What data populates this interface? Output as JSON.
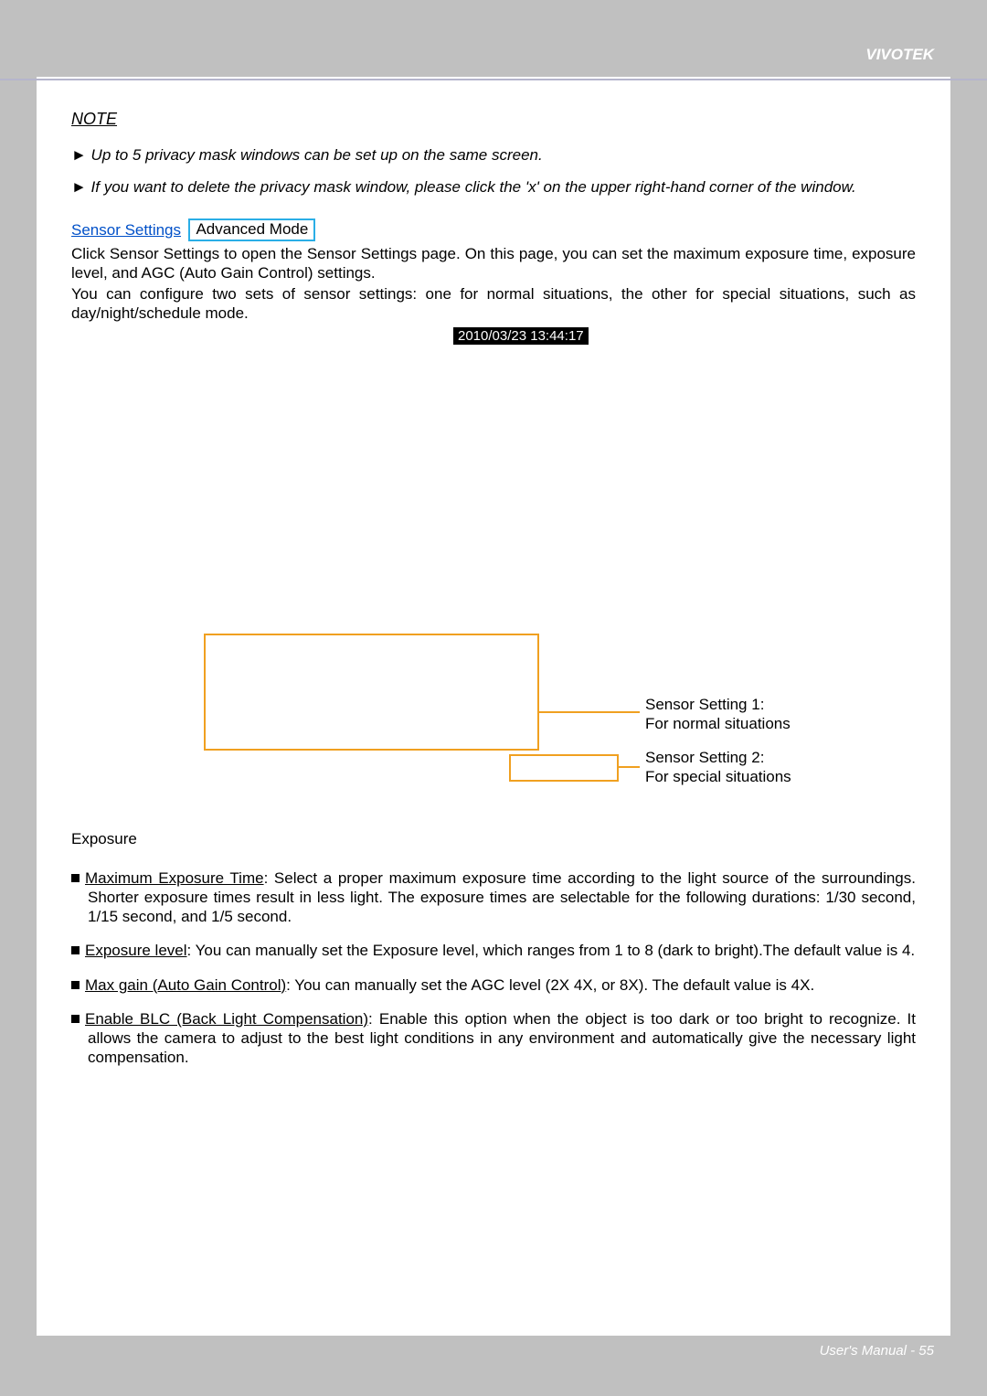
{
  "brand": "VIVOTEK",
  "footer": "User's Manual - 55",
  "note": {
    "title": "NOTE",
    "p1": "► Up to 5 privacy mask windows can be set up on the same screen.",
    "p2": "► If you want to delete the privacy mask window, please click the 'x' on the upper right-hand corner of the window."
  },
  "sensor": {
    "link": "Sensor Settings",
    "badge": "Advanced Mode",
    "text1": "Click Sensor Settings to open the Sensor Settings page. On this page, you can set the maximum exposure time, exposure level, and AGC (Auto Gain Control) settings.",
    "text2": "You can configure two sets of sensor settings: one for normal situations, the other for special situations, such as day/night/schedule mode."
  },
  "timestamp": "2010/03/23 13:44:17",
  "diagram": {
    "label1_title": "Sensor Setting 1:",
    "label1_sub": "For normal situations",
    "label2_title": "Sensor Setting 2:",
    "label2_sub": "For special situations",
    "box_border_color": "#f0a020"
  },
  "exposure": {
    "heading": "Exposure",
    "b1_u": "Maximum Exposure Time",
    "b1_rest": ": Select a proper maximum exposure time according to the light source of the surroundings. Shorter exposure times result in less light. The exposure times are selectable for the following durations: 1/30 second, 1/15 second, and 1/5 second.",
    "b2_u": "Exposure level",
    "b2_rest": ": You can manually set the Exposure level, which ranges from 1 to 8 (dark to bright).The default value is 4.",
    "b3_u": "Max gain (Auto Gain Control)",
    "b3_rest": ": You can manually set the AGC level (2X 4X, or 8X). The default value is 4X.",
    "b4_u": "Enable BLC (Back Light Compensation)",
    "b4_rest": ": Enable this option when the object is too dark or too bright to recognize. It allows the camera to adjust to the best light conditions in any environment and automatically give the necessary light compensation."
  }
}
